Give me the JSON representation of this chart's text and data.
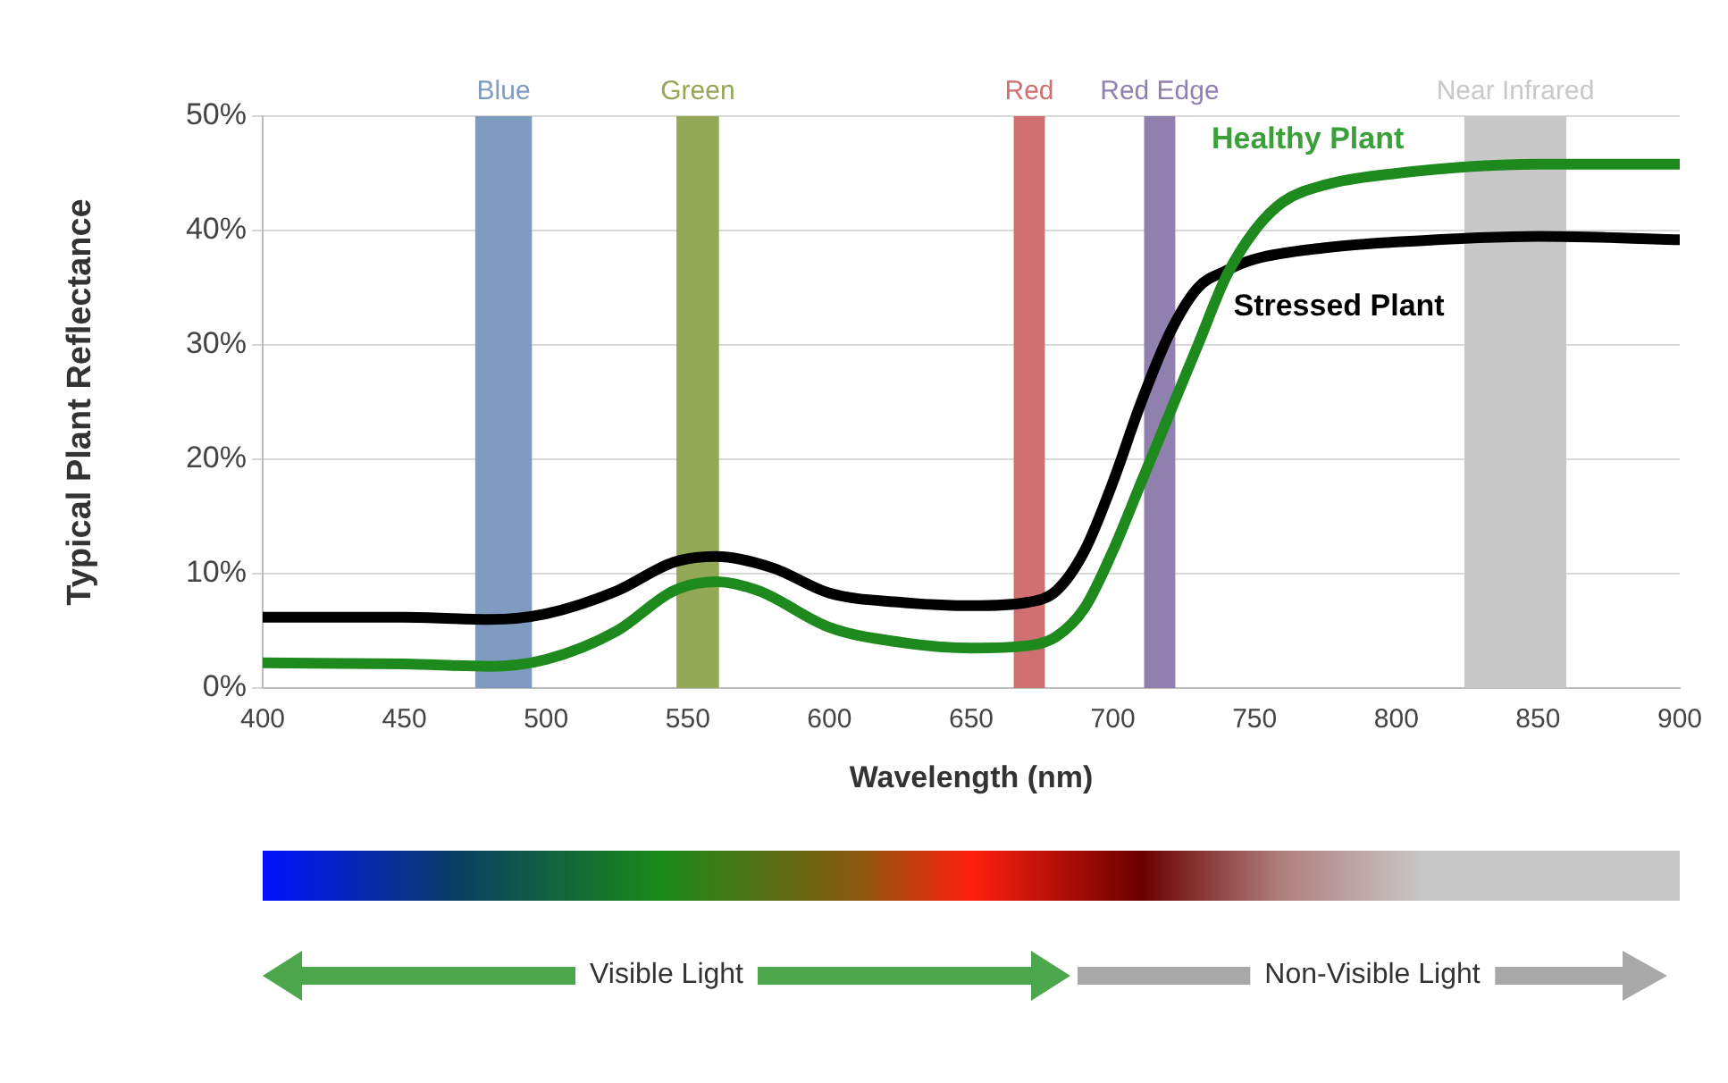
{
  "chart_data": {
    "type": "line",
    "xlabel": "Wavelength (nm)",
    "ylabel": "Typical Plant Reflectance",
    "xlim": [
      400,
      900
    ],
    "xticks": [
      400,
      450,
      500,
      550,
      600,
      650,
      700,
      750,
      800,
      850,
      900
    ],
    "ylim": [
      0,
      50
    ],
    "yticks": [
      {
        "value": 0,
        "label": "0%"
      },
      {
        "value": 10,
        "label": "10%"
      },
      {
        "value": 20,
        "label": "20%"
      },
      {
        "value": 30,
        "label": "30%"
      },
      {
        "value": 40,
        "label": "40%"
      },
      {
        "value": 50,
        "label": "50%"
      }
    ],
    "grid": "y",
    "legend": false,
    "marker": "none",
    "line_style": "solid",
    "series": [
      {
        "name": "Healthy Plant",
        "color": "#1e8a1e",
        "x": [
          400,
          450,
          480,
          500,
          525,
          545,
          560,
          575,
          600,
          625,
          650,
          670,
          680,
          690,
          700,
          710,
          720,
          730,
          740,
          750,
          760,
          775,
          800,
          850,
          900
        ],
        "values": [
          2.2,
          2.1,
          1.9,
          2.5,
          5,
          8.5,
          9.3,
          8.5,
          5.3,
          4,
          3.5,
          3.7,
          4.5,
          7,
          12,
          18,
          24,
          30,
          36,
          40,
          42.5,
          44,
          45,
          45.8,
          45.8
        ]
      },
      {
        "name": "Stressed Plant",
        "color": "#000000",
        "x": [
          400,
          450,
          480,
          500,
          525,
          545,
          560,
          580,
          600,
          625,
          650,
          670,
          680,
          690,
          700,
          710,
          720,
          730,
          740,
          750,
          775,
          800,
          850,
          900
        ],
        "values": [
          6.2,
          6.2,
          6,
          6.5,
          8.5,
          11,
          11.5,
          10.5,
          8.3,
          7.5,
          7.2,
          7.5,
          8.5,
          12,
          18,
          25,
          31,
          35,
          36.5,
          37.5,
          38.5,
          39,
          39.5,
          39.2
        ]
      }
    ],
    "bands": [
      {
        "axis": "x",
        "from": 475,
        "to": 495,
        "label": "Blue",
        "color": "#7f9cc0"
      },
      {
        "axis": "x",
        "from": 546,
        "to": 561,
        "label": "Green",
        "color": "#93a857"
      },
      {
        "axis": "x",
        "from": 665,
        "to": 676,
        "label": "Red",
        "color": "#d07070"
      },
      {
        "axis": "x",
        "from": 711,
        "to": 722,
        "label": "Red Edge",
        "color": "#9080b0"
      },
      {
        "axis": "x",
        "from": 824,
        "to": 860,
        "label": "Near Infrared",
        "color": "#c8c8c8"
      }
    ],
    "annotations": [
      "Visible Light",
      "Non-Visible Light"
    ]
  }
}
